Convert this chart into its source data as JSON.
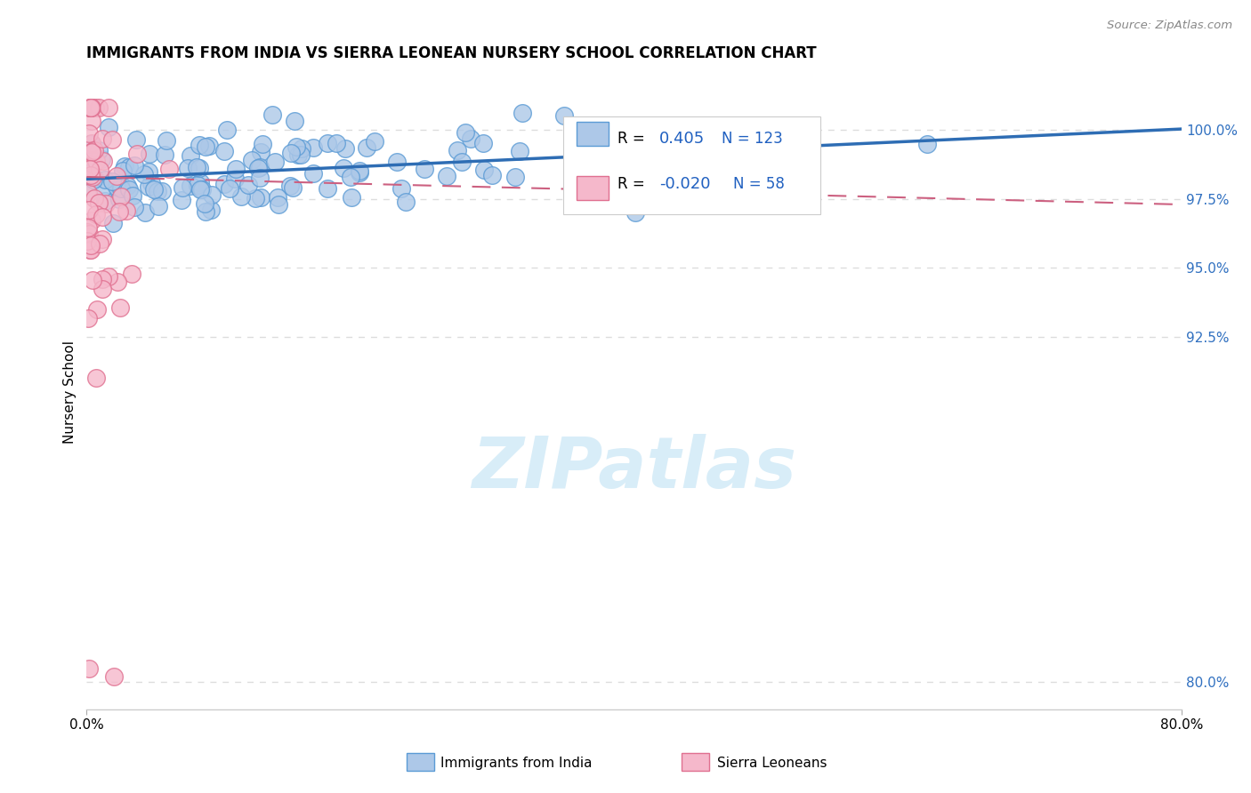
{
  "title": "IMMIGRANTS FROM INDIA VS SIERRA LEONEAN NURSERY SCHOOL CORRELATION CHART",
  "source": "Source: ZipAtlas.com",
  "ylabel": "Nursery School",
  "yticks": [
    80.0,
    92.5,
    95.0,
    97.5,
    100.0
  ],
  "ytick_labels": [
    "80.0%",
    "92.5%",
    "95.0%",
    "97.5%",
    "100.0%"
  ],
  "xlim": [
    0.0,
    80.0
  ],
  "ylim": [
    79.0,
    102.0
  ],
  "r_india": 0.405,
  "n_india": 123,
  "r_sierra": -0.02,
  "n_sierra": 58,
  "blue_color": "#adc8e8",
  "blue_edge": "#5b9bd5",
  "pink_color": "#f5b8cb",
  "pink_edge": "#e07090",
  "trend_blue": "#2e6db4",
  "trend_pink": "#cc6080",
  "watermark_color": "#d8edf8",
  "background_color": "#ffffff",
  "grid_color": "#dddddd",
  "ytick_color": "#3070c0",
  "legend_text_color": "#2060c0"
}
